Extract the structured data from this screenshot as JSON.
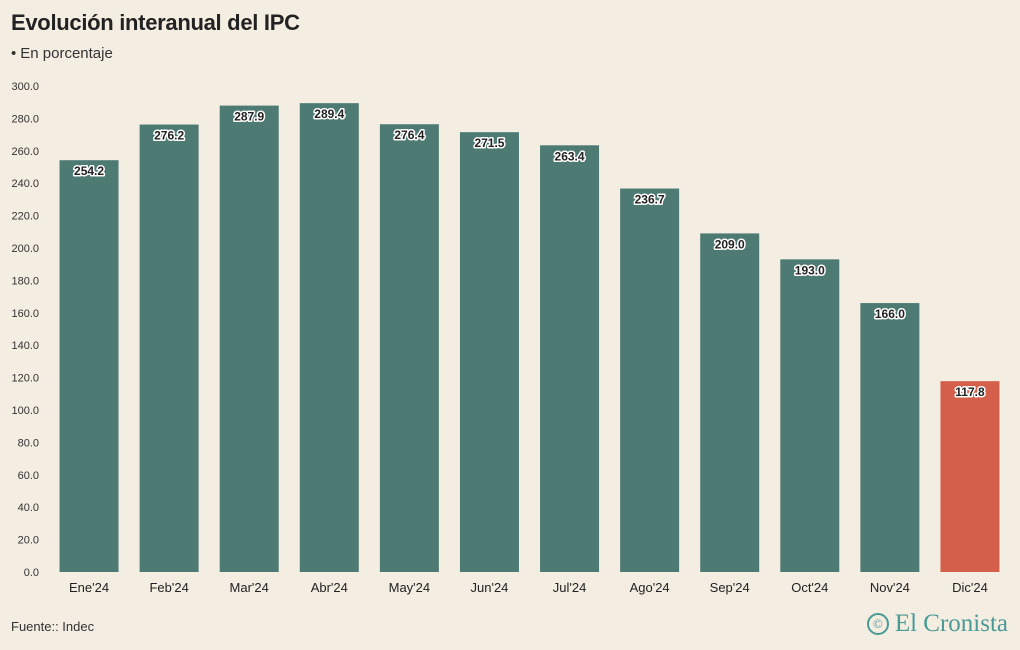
{
  "header": {
    "title": "Evolución interanual del IPC",
    "subtitle_bullet": "•",
    "subtitle": "En porcentaje"
  },
  "footer": {
    "source": "Fuente:: Indec",
    "brand_icon": "©",
    "brand": "El Cronista"
  },
  "colors": {
    "bar": "#4d7a73",
    "highlight": "#d4604b",
    "background": "#f4ede2"
  },
  "chart_data": {
    "type": "bar",
    "title": "Evolución interanual del IPC",
    "subtitle": "En porcentaje",
    "categories": [
      "Ene'24",
      "Feb'24",
      "Mar'24",
      "Abr'24",
      "May'24",
      "Jun'24",
      "Jul'24",
      "Ago'24",
      "Sep'24",
      "Oct'24",
      "Nov'24",
      "Dic'24"
    ],
    "values": [
      254.2,
      276.2,
      287.9,
      289.4,
      276.4,
      271.5,
      263.4,
      236.7,
      209.0,
      193.0,
      166.0,
      117.8
    ],
    "highlight_index": 11,
    "ylim": [
      0,
      300
    ],
    "yticks": [
      "0.0",
      "20.0",
      "40.0",
      "60.0",
      "80.0",
      "100.0",
      "120.0",
      "140.0",
      "160.0",
      "180.0",
      "200.0",
      "220.0",
      "240.0",
      "260.0",
      "280.0",
      "300.0"
    ],
    "grid": false,
    "legend": "none",
    "xlabel": "",
    "ylabel": ""
  }
}
